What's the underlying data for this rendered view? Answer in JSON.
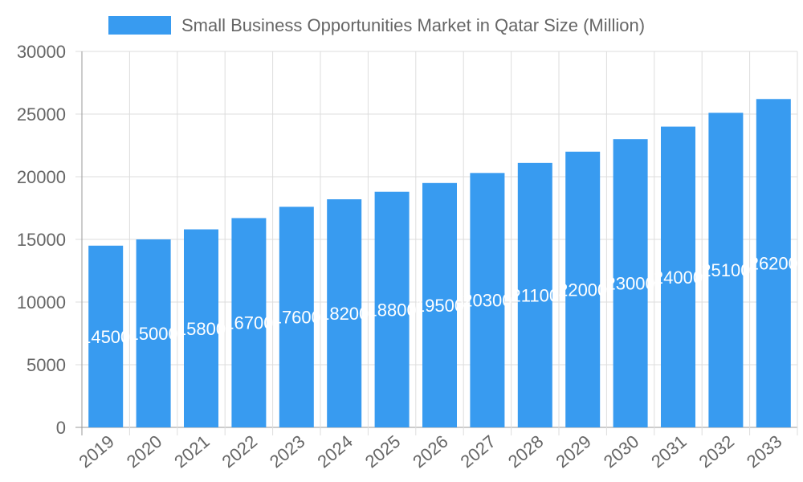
{
  "chart_data": {
    "type": "bar",
    "categories": [
      "2019",
      "2020",
      "2021",
      "2022",
      "2023",
      "2024",
      "2025",
      "2026",
      "2027",
      "2028",
      "2029",
      "2030",
      "2031",
      "2032",
      "2033"
    ],
    "series": [
      {
        "name": "Small Business Opportunities Market in Qatar Size (Million)",
        "values": [
          14500,
          15000,
          15800,
          16700,
          17600,
          18200,
          18800,
          19500,
          20300,
          21100,
          22000,
          23000,
          24000,
          25100,
          26200
        ]
      }
    ],
    "ylim": [
      0,
      30000
    ],
    "yticks": [
      0,
      5000,
      10000,
      15000,
      20000,
      25000,
      30000
    ],
    "grid": true,
    "legend": "top",
    "data_labels": true,
    "color": "#389bf0"
  }
}
